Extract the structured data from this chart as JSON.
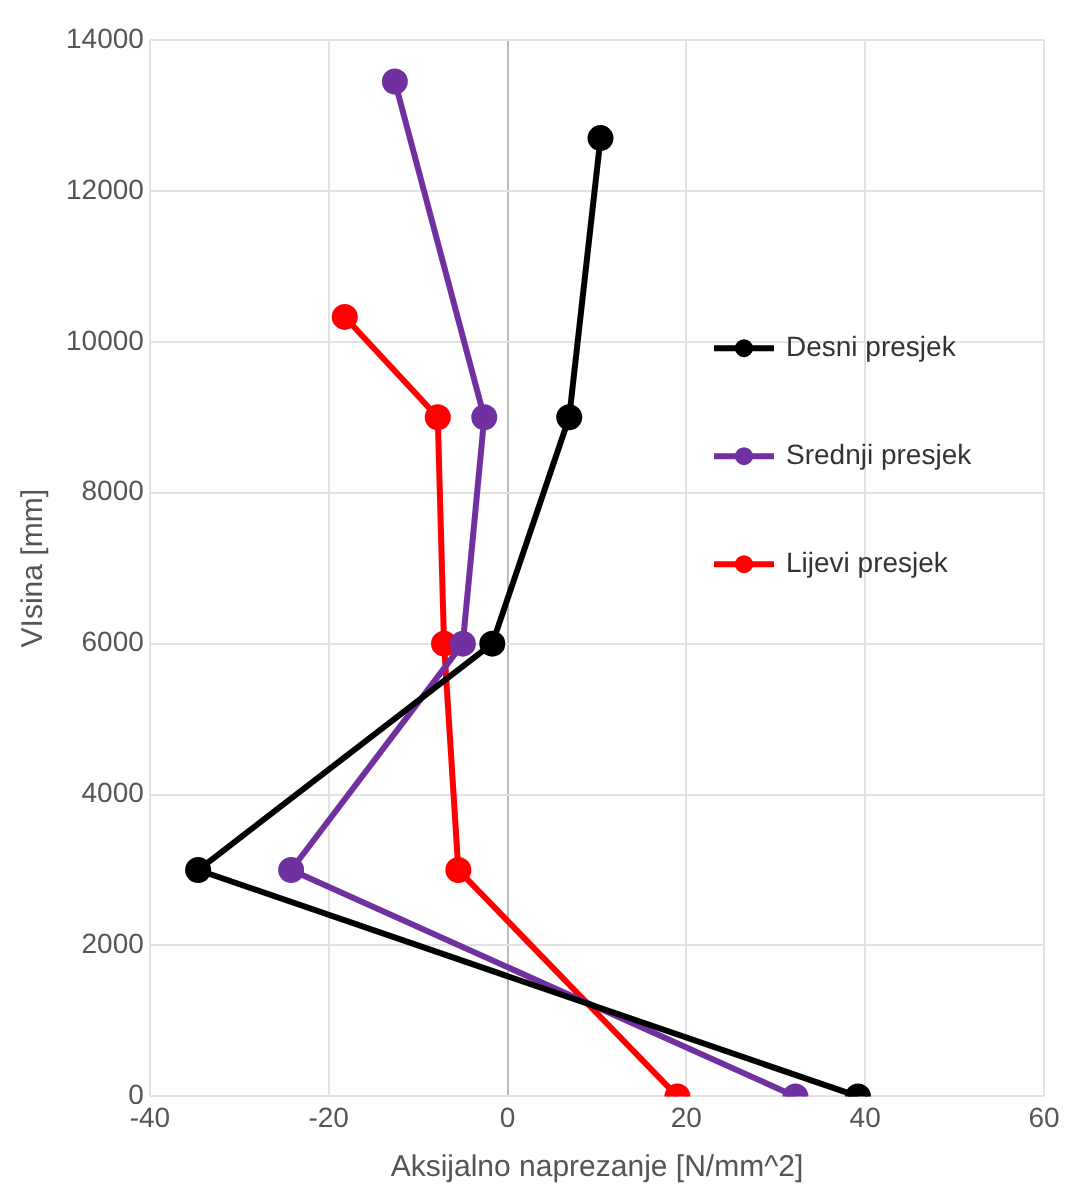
{
  "chart_data": {
    "type": "line",
    "xlabel": "Aksijalno naprezanje [N/mm^2]",
    "ylabel": "VIsina [mm]",
    "xlim": [
      -40,
      60
    ],
    "xticks": [
      -40,
      -20,
      0,
      20,
      40,
      60
    ],
    "ylim": [
      0,
      14000
    ],
    "yticks": [
      0,
      2000,
      4000,
      6000,
      8000,
      10000,
      12000,
      14000
    ],
    "grid": true,
    "legend": "right",
    "marker": "circle",
    "line_style": "solid",
    "series": [
      {
        "name": "Desni presjek",
        "color": "#000000",
        "x": [
          39.2,
          -34.6,
          -1.7,
          6.9,
          10.4
        ],
        "values": [
          0,
          3000,
          6000,
          9000,
          12700
        ]
      },
      {
        "name": "Srednji presjek",
        "color": "#7030a0",
        "x": [
          32.2,
          -24.2,
          -5.0,
          -2.6,
          -12.6
        ],
        "values": [
          0,
          3000,
          6000,
          9000,
          13450
        ]
      },
      {
        "name": "Lijevi presjek",
        "color": "#ff0000",
        "x": [
          19.0,
          -5.5,
          -7.1,
          -7.8,
          -18.2
        ],
        "values": [
          0,
          3000,
          6000,
          9000,
          10330
        ]
      }
    ]
  }
}
